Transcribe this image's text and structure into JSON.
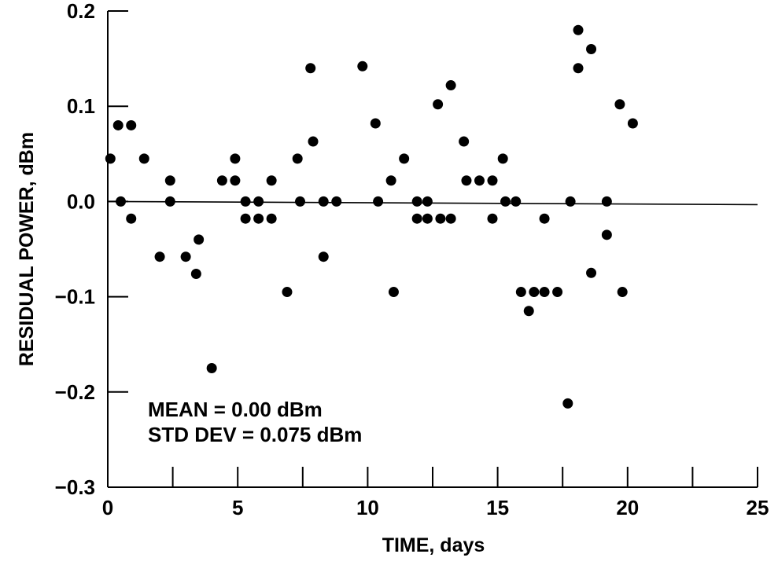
{
  "chart_data": {
    "type": "scatter",
    "title": "",
    "xlabel": "TIME, days",
    "ylabel": "RESIDUAL POWER, dBm",
    "xlim": [
      0,
      25
    ],
    "ylim": [
      -0.3,
      0.2
    ],
    "x_ticks": [
      0,
      5,
      10,
      15,
      20,
      25
    ],
    "x_tick_labels": [
      "0",
      "5",
      "10",
      "15",
      "20",
      "25"
    ],
    "y_ticks": [
      0.2,
      0.1,
      0.0,
      -0.1,
      -0.2,
      -0.3
    ],
    "y_tick_labels": [
      "0.2",
      "0.1",
      "0.0",
      "−0.1",
      "−0.2",
      "−0.3"
    ],
    "grid": false,
    "reference_line": {
      "y": 0.0
    },
    "annotations": [
      "MEAN = 0.00 dBm",
      "STD DEV = 0.075 dBm"
    ],
    "marker_color": "#000000",
    "series": [
      {
        "points": [
          [
            0.1,
            0.045
          ],
          [
            0.4,
            0.08
          ],
          [
            0.5,
            0.0
          ],
          [
            0.9,
            0.08
          ],
          [
            0.9,
            -0.018
          ],
          [
            1.4,
            0.045
          ],
          [
            2.0,
            -0.058
          ],
          [
            2.4,
            0.022
          ],
          [
            2.4,
            0.0
          ],
          [
            3.0,
            -0.058
          ],
          [
            3.4,
            -0.076
          ],
          [
            3.5,
            -0.04
          ],
          [
            4.0,
            -0.175
          ],
          [
            4.4,
            0.022
          ],
          [
            4.9,
            0.045
          ],
          [
            4.9,
            0.022
          ],
          [
            5.3,
            0.0
          ],
          [
            5.3,
            -0.018
          ],
          [
            5.8,
            0.0
          ],
          [
            5.8,
            -0.018
          ],
          [
            6.3,
            0.022
          ],
          [
            6.3,
            -0.018
          ],
          [
            6.9,
            -0.095
          ],
          [
            7.3,
            0.045
          ],
          [
            7.4,
            0.0
          ],
          [
            7.8,
            0.14
          ],
          [
            7.9,
            0.063
          ],
          [
            8.3,
            0.0
          ],
          [
            8.3,
            -0.058
          ],
          [
            8.8,
            0.0
          ],
          [
            9.8,
            0.142
          ],
          [
            10.3,
            0.082
          ],
          [
            10.4,
            0.0
          ],
          [
            10.9,
            0.022
          ],
          [
            11.0,
            -0.095
          ],
          [
            11.4,
            0.045
          ],
          [
            11.9,
            0.0
          ],
          [
            11.9,
            -0.018
          ],
          [
            12.3,
            0.0
          ],
          [
            12.3,
            -0.018
          ],
          [
            12.7,
            0.102
          ],
          [
            12.8,
            -0.018
          ],
          [
            13.2,
            0.122
          ],
          [
            13.2,
            -0.018
          ],
          [
            13.7,
            0.063
          ],
          [
            13.8,
            0.022
          ],
          [
            14.3,
            0.022
          ],
          [
            14.8,
            0.022
          ],
          [
            14.8,
            -0.018
          ],
          [
            15.2,
            0.045
          ],
          [
            15.3,
            0.0
          ],
          [
            15.7,
            0.0
          ],
          [
            15.9,
            -0.095
          ],
          [
            16.2,
            -0.115
          ],
          [
            16.4,
            -0.095
          ],
          [
            16.8,
            -0.018
          ],
          [
            16.8,
            -0.095
          ],
          [
            17.3,
            -0.095
          ],
          [
            17.7,
            -0.212
          ],
          [
            17.8,
            0.0
          ],
          [
            18.1,
            0.18
          ],
          [
            18.1,
            0.14
          ],
          [
            18.6,
            0.16
          ],
          [
            18.6,
            -0.075
          ],
          [
            19.2,
            0.0
          ],
          [
            19.2,
            -0.035
          ],
          [
            19.7,
            0.102
          ],
          [
            19.8,
            -0.095
          ],
          [
            20.2,
            0.082
          ]
        ]
      }
    ]
  }
}
